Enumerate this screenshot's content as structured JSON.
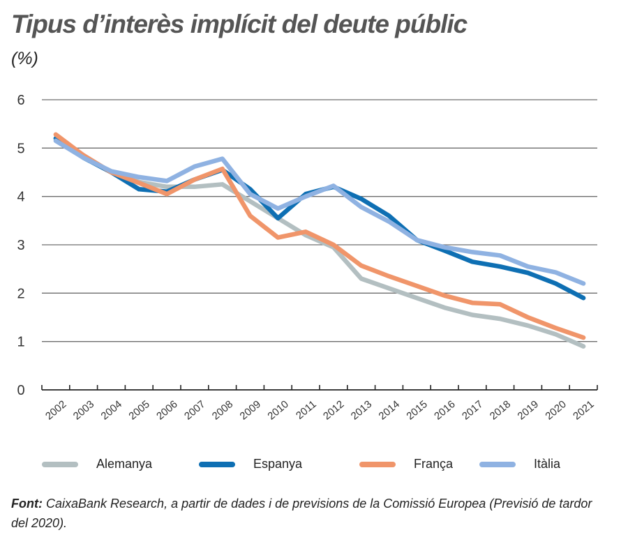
{
  "header": {
    "title": "Tipus d’interès implícit del deute públic",
    "subtitle": "(%)"
  },
  "chart_data": {
    "type": "line",
    "title": "Tipus d’interès implícit del deute públic",
    "subtitle": "(%)",
    "xlabel": "",
    "ylabel": "%",
    "ylim": [
      0,
      6
    ],
    "yticks": [
      "0",
      "1",
      "2",
      "3",
      "4",
      "5",
      "6"
    ],
    "grid": true,
    "legend_position": "bottom",
    "categories": [
      "2002",
      "2003",
      "2004",
      "2005",
      "2006",
      "2007",
      "2008",
      "2009",
      "2010",
      "2011",
      "2012",
      "2013",
      "2014",
      "2015",
      "2016",
      "2017",
      "2018",
      "2019",
      "2020",
      "2021"
    ],
    "series": [
      {
        "name": "Alemanya",
        "color": "#b3bfc1",
        "values": [
          5.2,
          4.85,
          4.5,
          4.3,
          4.2,
          4.2,
          4.25,
          3.9,
          3.55,
          3.2,
          2.95,
          2.3,
          2.1,
          1.9,
          1.7,
          1.55,
          1.47,
          1.33,
          1.15,
          0.9
        ]
      },
      {
        "name": "Espanya",
        "color": "#0e6fb3",
        "values": [
          5.2,
          4.8,
          4.5,
          4.15,
          4.1,
          4.35,
          4.55,
          4.15,
          3.55,
          4.05,
          4.2,
          3.95,
          3.6,
          3.1,
          2.88,
          2.65,
          2.55,
          2.42,
          2.2,
          1.9
        ]
      },
      {
        "name": "França",
        "color": "#f0956a",
        "values": [
          5.28,
          4.85,
          4.5,
          4.28,
          4.05,
          4.35,
          4.57,
          3.6,
          3.15,
          3.27,
          3.0,
          2.57,
          2.35,
          2.15,
          1.95,
          1.8,
          1.77,
          1.5,
          1.28,
          1.08
        ]
      },
      {
        "name": "Itàlia",
        "color": "#8fb2e2",
        "values": [
          5.15,
          4.8,
          4.52,
          4.4,
          4.32,
          4.62,
          4.78,
          4.05,
          3.75,
          4.0,
          4.22,
          3.78,
          3.48,
          3.1,
          2.95,
          2.85,
          2.78,
          2.55,
          2.43,
          2.2
        ]
      }
    ]
  },
  "legend": {
    "items": [
      {
        "label": "Alemanya",
        "color": "#b3bfc1"
      },
      {
        "label": "Espanya",
        "color": "#0e6fb3"
      },
      {
        "label": "França",
        "color": "#f0956a"
      },
      {
        "label": "Itàlia",
        "color": "#8fb2e2"
      }
    ]
  },
  "footer": {
    "label": "Font:",
    "text": " CaixaBank Research, a partir de dades i de previsions de la Comissió Europea (Previsió de tardor del 2020)."
  }
}
